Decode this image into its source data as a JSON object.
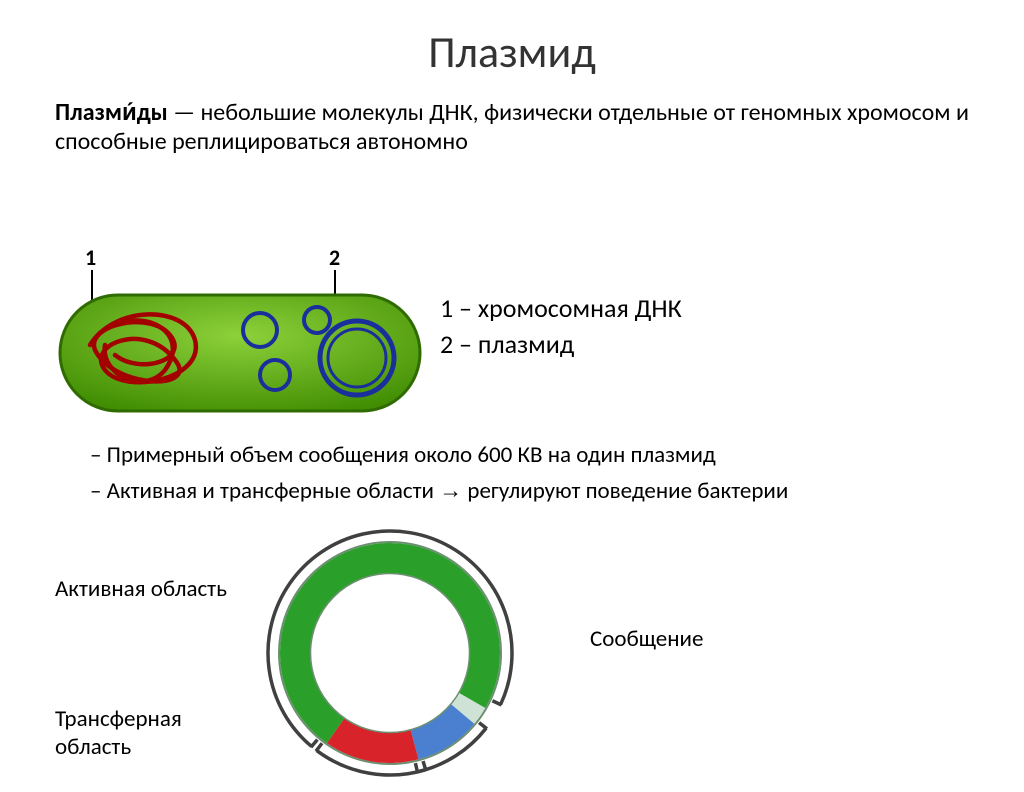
{
  "title": "Плазмид",
  "definition": {
    "term": "Плазми́ды",
    "rest": " — небольшие молекулы ДНК, физически отдельные от геномных хромосом и способные реплицироваться автономно"
  },
  "bacterium": {
    "label1": "1",
    "label2": "2",
    "body_fill": "#4ea000",
    "body_fill_light": "#7cc92b",
    "body_stroke": "#2f6b00",
    "chromosome_stroke": "#a30000",
    "plasmid_stroke": "#1a2f9c",
    "plasmid_fill": "#5b8ed4",
    "leader_stroke": "#000000",
    "label_fontsize": 20
  },
  "legend": {
    "line1": "1 – хромосомная ДНК",
    "line2": "2 – плазмид"
  },
  "bullets": {
    "b1": "– Примерный объем сообщения около 600 КВ на один плазмид",
    "b2_pre": "– Активная и трансферные области ",
    "b2_arrow": "→",
    "b2_post": " регулируют поведение бактерии"
  },
  "ring": {
    "outer_stroke": "#6b8f70",
    "active_color": "#4b7fcf",
    "transfer_color": "#d8232a",
    "message_color": "#2aa02a",
    "gap_color": "#cfe2d6",
    "brace_stroke": "#404040",
    "active_start": 130,
    "active_end": 165,
    "transfer_start": 165,
    "transfer_end": 215,
    "message_start": 215,
    "message_end": 480,
    "gap_start": 480,
    "gap_end": 490,
    "ring_thickness": 30,
    "ring_radius": 95
  },
  "ring_labels": {
    "active": "Активная область",
    "transfer": "Трансферная область",
    "message": "Сообщение"
  }
}
